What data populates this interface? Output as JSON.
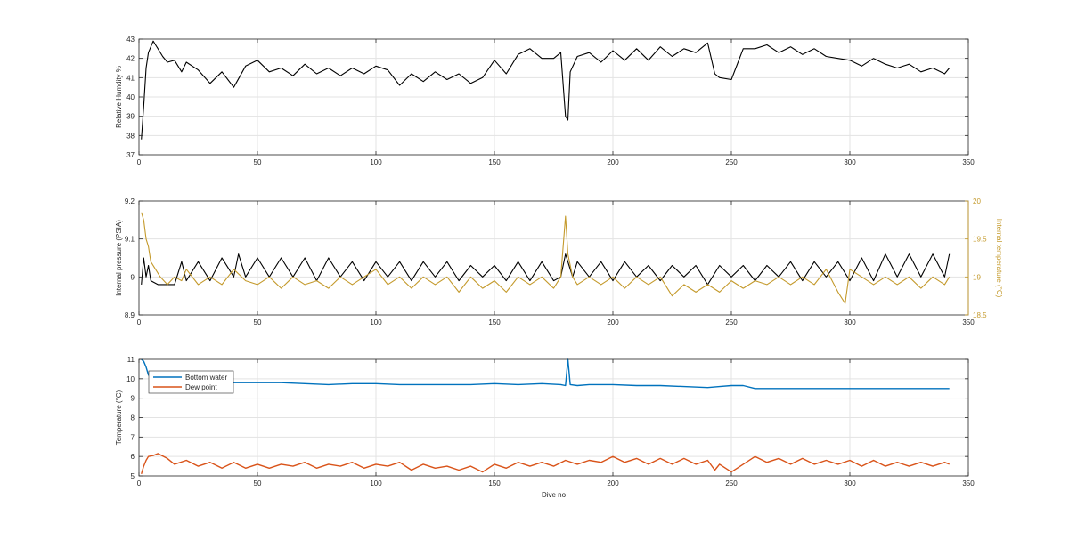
{
  "chart_data": [
    {
      "type": "line",
      "xlabel": "",
      "ylabel": "Relative Humdity %",
      "xlim": [
        0,
        350
      ],
      "ylim": [
        37,
        43
      ],
      "xticks": [
        "0",
        "50",
        "100",
        "150",
        "200",
        "250",
        "300",
        "350"
      ],
      "yticks": [
        "37",
        "38",
        "39",
        "40",
        "41",
        "42",
        "43"
      ],
      "grid": true,
      "series": [
        {
          "name": "",
          "color": "#000000",
          "x": [
            1,
            2,
            3,
            4,
            5,
            6,
            7,
            8,
            10,
            12,
            15,
            18,
            20,
            25,
            30,
            35,
            40,
            45,
            50,
            55,
            60,
            65,
            70,
            75,
            80,
            85,
            90,
            95,
            100,
            105,
            110,
            115,
            120,
            125,
            130,
            135,
            140,
            145,
            150,
            155,
            160,
            165,
            170,
            175,
            178,
            180,
            181,
            182,
            185,
            190,
            195,
            200,
            205,
            210,
            215,
            220,
            225,
            230,
            235,
            240,
            243,
            245,
            250,
            255,
            260,
            265,
            270,
            275,
            280,
            285,
            290,
            295,
            300,
            305,
            310,
            315,
            320,
            325,
            330,
            335,
            340,
            342
          ],
          "y": [
            37.8,
            39.5,
            41.5,
            42.3,
            42.6,
            42.9,
            42.7,
            42.5,
            42.1,
            41.8,
            41.9,
            41.3,
            41.8,
            41.4,
            40.7,
            41.3,
            40.5,
            41.6,
            41.9,
            41.3,
            41.5,
            41.1,
            41.7,
            41.2,
            41.5,
            41.1,
            41.5,
            41.2,
            41.6,
            41.4,
            40.6,
            41.2,
            40.8,
            41.3,
            40.9,
            41.2,
            40.7,
            41.0,
            41.9,
            41.2,
            42.2,
            42.5,
            42.0,
            42.0,
            42.3,
            39.0,
            38.8,
            41.3,
            42.1,
            42.3,
            41.8,
            42.4,
            41.9,
            42.5,
            41.9,
            42.6,
            42.1,
            42.5,
            42.3,
            42.8,
            41.2,
            41.0,
            40.9,
            42.5,
            42.5,
            42.7,
            42.3,
            42.6,
            42.2,
            42.5,
            42.1,
            42.0,
            41.9,
            41.6,
            42.0,
            41.7,
            41.5,
            41.7,
            41.3,
            41.5,
            41.2,
            41.5
          ]
        }
      ]
    },
    {
      "type": "line",
      "xlabel": "",
      "ylabel": "Internal pressure (PSIA)",
      "ylabel_right": "Internal temperature (°C)",
      "xlim": [
        0,
        350
      ],
      "ylim": [
        8.9,
        9.2
      ],
      "ylim_right": [
        18.5,
        20
      ],
      "xticks": [
        "0",
        "50",
        "100",
        "150",
        "200",
        "250",
        "300",
        "350"
      ],
      "yticks": [
        "8.9",
        "9",
        "9.1",
        "9.2"
      ],
      "yticks_right": [
        "18.5",
        "19",
        "19.5",
        "20"
      ],
      "grid": true,
      "series": [
        {
          "name": "",
          "axis": "left",
          "color": "#000000",
          "x": [
            1,
            2,
            3,
            4,
            5,
            8,
            10,
            15,
            18,
            20,
            25,
            30,
            35,
            40,
            42,
            45,
            50,
            55,
            60,
            65,
            70,
            75,
            80,
            85,
            90,
            95,
            100,
            105,
            110,
            115,
            120,
            125,
            130,
            135,
            140,
            145,
            150,
            155,
            160,
            165,
            170,
            175,
            178,
            180,
            181,
            183,
            185,
            190,
            195,
            200,
            205,
            210,
            215,
            220,
            225,
            230,
            235,
            240,
            245,
            250,
            255,
            260,
            265,
            270,
            275,
            280,
            285,
            290,
            295,
            300,
            305,
            310,
            315,
            320,
            325,
            330,
            335,
            340,
            342
          ],
          "y": [
            8.98,
            9.05,
            9.0,
            9.03,
            8.99,
            8.98,
            8.98,
            8.98,
            9.04,
            8.99,
            9.04,
            8.99,
            9.05,
            9.0,
            9.06,
            9.0,
            9.05,
            9.0,
            9.05,
            9.0,
            9.05,
            8.99,
            9.05,
            9.0,
            9.04,
            8.99,
            9.04,
            9.0,
            9.04,
            8.99,
            9.04,
            9.0,
            9.04,
            8.99,
            9.03,
            9.0,
            9.03,
            8.99,
            9.04,
            8.99,
            9.04,
            8.99,
            9.0,
            9.06,
            9.04,
            9.0,
            9.04,
            9.0,
            9.04,
            8.99,
            9.04,
            9.0,
            9.03,
            8.99,
            9.03,
            9.0,
            9.03,
            8.98,
            9.03,
            9.0,
            9.03,
            8.99,
            9.03,
            9.0,
            9.04,
            8.99,
            9.04,
            9.0,
            9.04,
            8.99,
            9.05,
            8.99,
            9.06,
            9.0,
            9.06,
            9.0,
            9.06,
            9.0,
            9.06
          ]
        },
        {
          "name": "",
          "axis": "right",
          "color": "#c49a2c",
          "x": [
            1,
            2,
            3,
            4,
            5,
            7,
            9,
            12,
            15,
            18,
            20,
            25,
            30,
            35,
            40,
            45,
            50,
            55,
            60,
            65,
            70,
            75,
            80,
            85,
            90,
            95,
            100,
            105,
            110,
            115,
            120,
            125,
            130,
            135,
            140,
            145,
            150,
            155,
            160,
            165,
            170,
            175,
            178,
            180,
            181,
            183,
            185,
            190,
            195,
            200,
            205,
            210,
            215,
            220,
            225,
            230,
            235,
            240,
            245,
            250,
            255,
            260,
            265,
            270,
            275,
            280,
            285,
            290,
            295,
            298,
            300,
            305,
            310,
            315,
            320,
            325,
            330,
            335,
            340,
            342
          ],
          "y": [
            19.85,
            19.75,
            19.5,
            19.4,
            19.2,
            19.1,
            19.0,
            18.9,
            19.0,
            18.95,
            19.1,
            18.9,
            19.0,
            18.9,
            19.1,
            18.95,
            18.9,
            19.0,
            18.85,
            19.0,
            18.9,
            18.95,
            18.85,
            19.0,
            18.9,
            19.0,
            19.1,
            18.9,
            19.0,
            18.85,
            19.0,
            18.9,
            19.0,
            18.8,
            19.0,
            18.85,
            18.95,
            18.8,
            19.0,
            18.9,
            19.0,
            18.85,
            19.0,
            19.8,
            19.3,
            19.0,
            18.9,
            19.0,
            18.9,
            19.0,
            18.85,
            19.0,
            18.9,
            19.0,
            18.75,
            18.9,
            18.8,
            18.9,
            18.8,
            18.95,
            18.85,
            18.95,
            18.9,
            19.0,
            18.9,
            19.0,
            18.9,
            19.1,
            18.8,
            18.65,
            19.1,
            19.0,
            18.9,
            19.0,
            18.9,
            19.0,
            18.85,
            19.0,
            18.9,
            19.0
          ]
        }
      ]
    },
    {
      "type": "line",
      "xlabel": "Dive no",
      "ylabel": "Temperature (°C)",
      "xlim": [
        0,
        350
      ],
      "ylim": [
        5,
        11
      ],
      "xticks": [
        "0",
        "50",
        "100",
        "150",
        "200",
        "250",
        "300",
        "350"
      ],
      "yticks": [
        "5",
        "6",
        "7",
        "8",
        "9",
        "10",
        "11"
      ],
      "grid": true,
      "legend": "top-left",
      "series": [
        {
          "name": "Bottom water",
          "color": "#0072bd",
          "x": [
            1,
            2,
            3,
            4,
            6,
            10,
            20,
            30,
            40,
            50,
            60,
            70,
            80,
            90,
            100,
            110,
            120,
            130,
            140,
            150,
            160,
            170,
            178,
            180,
            181,
            182,
            185,
            190,
            200,
            210,
            220,
            230,
            240,
            245,
            250,
            255,
            260,
            270,
            280,
            290,
            300,
            310,
            320,
            330,
            342
          ],
          "y": [
            11.0,
            10.9,
            10.6,
            10.2,
            9.85,
            9.8,
            9.8,
            9.75,
            9.8,
            9.8,
            9.8,
            9.75,
            9.7,
            9.75,
            9.75,
            9.7,
            9.7,
            9.7,
            9.7,
            9.75,
            9.7,
            9.75,
            9.7,
            9.65,
            11.0,
            9.7,
            9.65,
            9.7,
            9.7,
            9.65,
            9.65,
            9.6,
            9.55,
            9.6,
            9.65,
            9.65,
            9.5,
            9.5,
            9.5,
            9.5,
            9.5,
            9.5,
            9.5,
            9.5,
            9.5
          ]
        },
        {
          "name": "Dew point",
          "color": "#d95319",
          "x": [
            1,
            2,
            3,
            4,
            6,
            8,
            12,
            15,
            20,
            25,
            30,
            35,
            40,
            45,
            50,
            55,
            60,
            65,
            70,
            75,
            80,
            85,
            90,
            95,
            100,
            105,
            110,
            115,
            120,
            125,
            130,
            135,
            140,
            145,
            150,
            155,
            160,
            165,
            170,
            175,
            180,
            185,
            190,
            195,
            200,
            205,
            210,
            215,
            220,
            225,
            230,
            235,
            240,
            243,
            245,
            250,
            255,
            260,
            265,
            270,
            275,
            280,
            285,
            290,
            295,
            300,
            305,
            310,
            315,
            320,
            325,
            330,
            335,
            340,
            342
          ],
          "y": [
            5.1,
            5.5,
            5.8,
            6.0,
            6.05,
            6.15,
            5.9,
            5.6,
            5.8,
            5.5,
            5.7,
            5.4,
            5.7,
            5.4,
            5.6,
            5.4,
            5.6,
            5.5,
            5.7,
            5.4,
            5.6,
            5.5,
            5.7,
            5.4,
            5.6,
            5.5,
            5.7,
            5.3,
            5.6,
            5.4,
            5.5,
            5.3,
            5.5,
            5.2,
            5.6,
            5.4,
            5.7,
            5.5,
            5.7,
            5.5,
            5.8,
            5.6,
            5.8,
            5.7,
            6.0,
            5.7,
            5.9,
            5.6,
            5.9,
            5.6,
            5.9,
            5.6,
            5.8,
            5.3,
            5.6,
            5.2,
            5.6,
            6.0,
            5.7,
            5.9,
            5.6,
            5.9,
            5.6,
            5.8,
            5.6,
            5.8,
            5.5,
            5.8,
            5.5,
            5.7,
            5.5,
            5.7,
            5.5,
            5.7,
            5.6
          ]
        }
      ]
    }
  ]
}
